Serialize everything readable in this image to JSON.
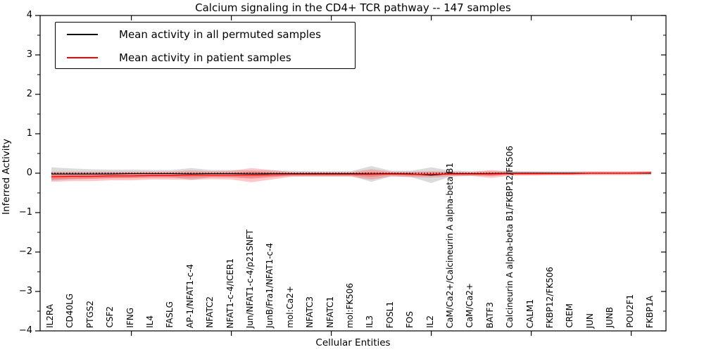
{
  "figure": {
    "title": "Calcium signaling in the CD4+ TCR pathway -- 147 samples",
    "xlabel": "Cellular Entities",
    "ylabel": "Inferred Activity"
  },
  "chart_data": {
    "type": "line",
    "title": "Calcium signaling in the CD4+ TCR pathway -- 147 samples",
    "xlabel": "Cellular Entities",
    "ylabel": "Inferred Activity",
    "ylim": [
      -4,
      4
    ],
    "ytick_values": [
      4,
      3,
      2,
      1,
      0,
      -1,
      -2,
      -3,
      -4
    ],
    "ytick_labels": [
      "4",
      "3",
      "2",
      "1",
      "0",
      "−1",
      "−2",
      "−3",
      "−4"
    ],
    "grid": false,
    "legend_position": "upper left",
    "zero_line": {
      "y": 0,
      "style": "dotted",
      "color": "#000000"
    },
    "categories": [
      "IL2RA",
      "CD40LG",
      "PTGS2",
      "CSF2",
      "IFNG",
      "IL4",
      "FASLG",
      "AP-1/NFAT1-c-4",
      "NFATC2",
      "NFAT1-c-4/ICER1",
      "Jun/NFAT1-c-4/p21SNFT",
      "JunB/Fra1/NFAT1-c-4",
      "mol:Ca2+",
      "NFATC3",
      "NFATC1",
      "mol:FK506",
      "IL3",
      "FOSL1",
      "FOS",
      "IL2",
      "CaM/Ca2+/Calcineurin A alpha-beta B1",
      "CaM/Ca2+",
      "BATF3",
      "Calcineurin A alpha-beta B1/FKBP12/FK506",
      "CALM1",
      "FKBP12/FK506",
      "CREM",
      "JUN",
      "JUNB",
      "POU2F1",
      "FKBP1A"
    ],
    "series": [
      {
        "name": "Mean activity in all permuted samples",
        "color": "#000000",
        "band_color": "#999999",
        "values": [
          -0.02,
          -0.02,
          -0.02,
          -0.02,
          -0.01,
          -0.01,
          -0.01,
          -0.02,
          -0.01,
          -0.01,
          -0.02,
          -0.01,
          -0.01,
          -0.01,
          -0.01,
          -0.01,
          -0.02,
          -0.01,
          -0.02,
          -0.05,
          -0.01,
          -0.01,
          -0.01,
          0.0,
          0.0,
          0.0,
          0.0,
          0.0,
          0.0,
          0.0,
          0.0
        ],
        "std": [
          0.17,
          0.14,
          0.12,
          0.11,
          0.1,
          0.09,
          0.09,
          0.15,
          0.09,
          0.09,
          0.09,
          0.08,
          0.07,
          0.06,
          0.06,
          0.06,
          0.2,
          0.07,
          0.08,
          0.2,
          0.07,
          0.06,
          0.06,
          0.05,
          0.05,
          0.05,
          0.05,
          0.05,
          0.05,
          0.05,
          0.05
        ]
      },
      {
        "name": "Mean activity in patient samples",
        "color": "#ff0000",
        "band_color": "#ff4444",
        "values": [
          -0.09,
          -0.08,
          -0.08,
          -0.07,
          -0.07,
          -0.06,
          -0.06,
          -0.05,
          -0.05,
          -0.05,
          -0.05,
          -0.04,
          -0.03,
          -0.03,
          -0.03,
          -0.03,
          -0.03,
          -0.02,
          -0.03,
          -0.03,
          -0.02,
          -0.02,
          -0.02,
          -0.01,
          -0.01,
          -0.01,
          -0.01,
          0.0,
          0.0,
          0.0,
          0.01
        ],
        "std": [
          0.13,
          0.12,
          0.12,
          0.11,
          0.11,
          0.1,
          0.1,
          0.12,
          0.1,
          0.11,
          0.18,
          0.12,
          0.06,
          0.06,
          0.06,
          0.06,
          0.13,
          0.06,
          0.07,
          0.08,
          0.06,
          0.05,
          0.1,
          0.05,
          0.05,
          0.04,
          0.04,
          0.04,
          0.04,
          0.04,
          0.04
        ]
      }
    ]
  }
}
